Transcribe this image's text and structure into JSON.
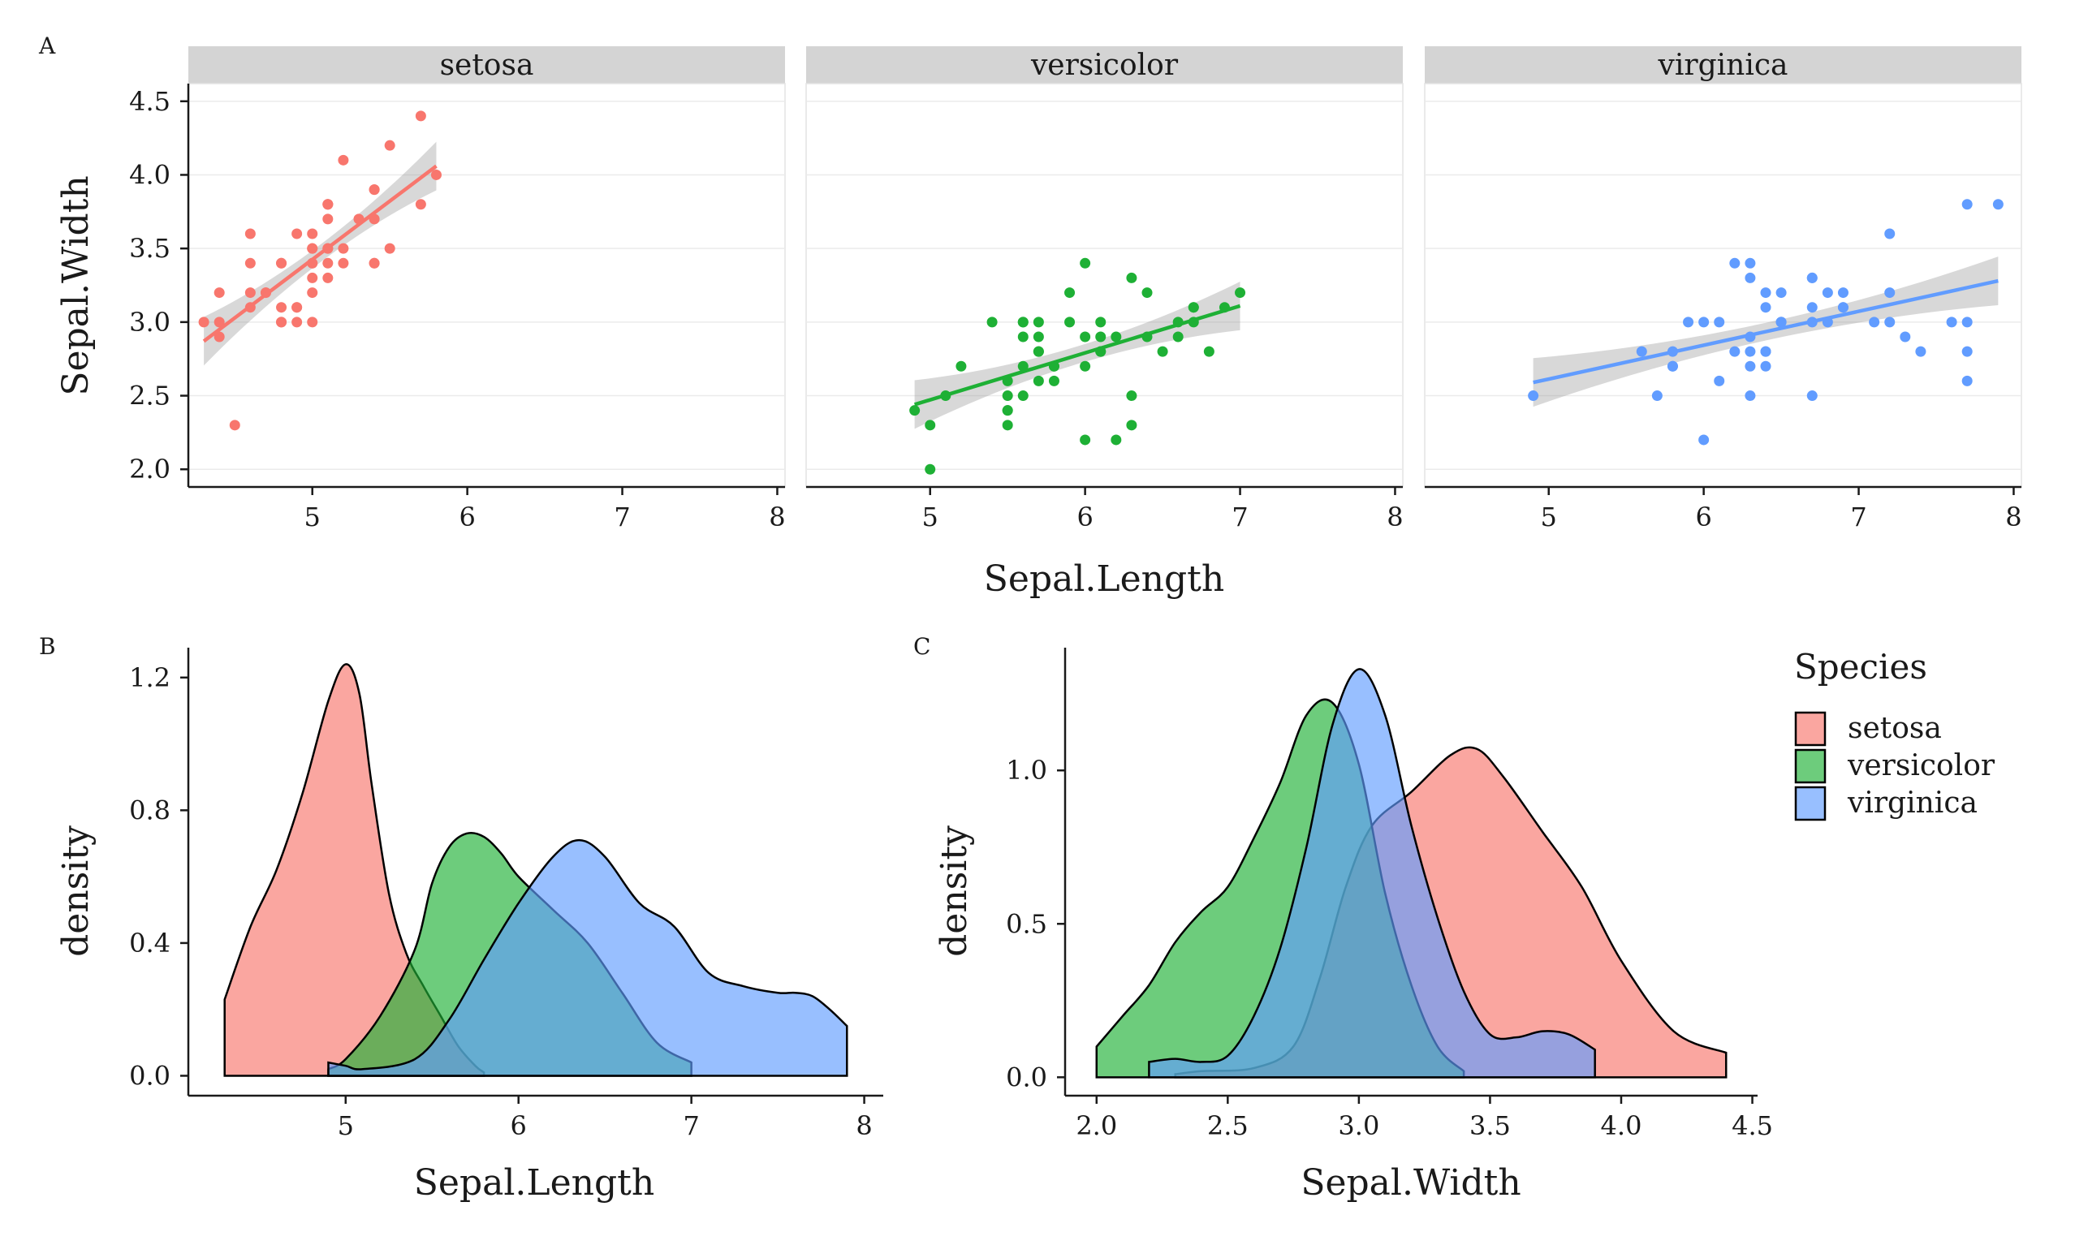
{
  "colors": {
    "setosa": "#F8766D",
    "versicolor": "#1EB035",
    "virginica": "#619CFF",
    "strip_bg": "#D4D4D4",
    "ribbon": "#999999"
  },
  "legend": {
    "title": "Species",
    "items": [
      "setosa",
      "versicolor",
      "virginica"
    ]
  },
  "chart_data": [
    {
      "tag": "A",
      "type": "scatter",
      "facets": [
        "setosa",
        "versicolor",
        "virginica"
      ],
      "xlabel": "Sepal.Length",
      "ylabel": "Sepal.Width",
      "xlim": [
        4.2,
        8.05
      ],
      "ylim": [
        1.88,
        4.62
      ],
      "xticks": [
        5,
        6,
        7,
        8
      ],
      "yticks": [
        "2.0",
        "2.5",
        "3.0",
        "3.5",
        "4.0",
        "4.5"
      ],
      "regression": "linear fit with confidence band per facet",
      "series": [
        {
          "name": "setosa",
          "x": [
            5.1,
            4.9,
            4.7,
            4.6,
            5.0,
            5.4,
            4.6,
            5.0,
            4.4,
            4.9,
            5.4,
            4.8,
            4.8,
            4.3,
            5.8,
            5.7,
            5.4,
            5.1,
            5.7,
            5.1,
            5.4,
            5.1,
            4.6,
            5.1,
            4.8,
            5.0,
            5.0,
            5.2,
            5.2,
            4.7,
            4.8,
            5.4,
            5.2,
            5.5,
            4.9,
            5.0,
            5.5,
            4.9,
            4.4,
            5.1,
            5.0,
            4.5,
            4.4,
            5.0,
            5.1,
            4.8,
            5.1,
            4.6,
            5.3,
            5.0
          ],
          "y": [
            3.5,
            3.0,
            3.2,
            3.1,
            3.6,
            3.9,
            3.4,
            3.4,
            2.9,
            3.1,
            3.7,
            3.4,
            3.0,
            3.0,
            4.0,
            4.4,
            3.9,
            3.5,
            3.8,
            3.8,
            3.4,
            3.7,
            3.6,
            3.3,
            3.4,
            3.0,
            3.4,
            3.5,
            3.4,
            3.2,
            3.1,
            3.4,
            4.1,
            4.2,
            3.1,
            3.2,
            3.5,
            3.6,
            3.0,
            3.4,
            3.5,
            2.3,
            3.2,
            3.5,
            3.8,
            3.0,
            3.8,
            3.2,
            3.7,
            3.3
          ],
          "fit": {
            "x": [
              4.3,
              5.8
            ],
            "y": [
              2.87,
              4.06
            ]
          }
        },
        {
          "name": "versicolor",
          "x": [
            7.0,
            6.4,
            6.9,
            5.5,
            6.5,
            5.7,
            6.3,
            4.9,
            6.6,
            5.2,
            5.0,
            5.9,
            6.0,
            6.1,
            5.6,
            6.7,
            5.6,
            5.8,
            6.2,
            5.6,
            5.9,
            6.1,
            6.3,
            6.1,
            6.4,
            6.6,
            6.8,
            6.7,
            6.0,
            5.7,
            5.5,
            5.5,
            5.8,
            6.0,
            5.4,
            6.0,
            6.7,
            6.3,
            5.6,
            5.5,
            5.5,
            6.1,
            5.8,
            5.0,
            5.6,
            5.7,
            5.7,
            6.2,
            5.1,
            5.7
          ],
          "y": [
            3.2,
            3.2,
            3.1,
            2.3,
            2.8,
            2.8,
            3.3,
            2.4,
            2.9,
            2.7,
            2.0,
            3.0,
            2.2,
            2.9,
            2.9,
            3.1,
            3.0,
            2.7,
            2.2,
            2.5,
            3.2,
            2.8,
            2.5,
            2.8,
            2.9,
            3.0,
            2.8,
            3.0,
            2.9,
            2.6,
            2.4,
            2.4,
            2.7,
            2.7,
            3.0,
            3.4,
            3.1,
            2.3,
            3.0,
            2.5,
            2.6,
            3.0,
            2.6,
            2.3,
            2.7,
            3.0,
            2.9,
            2.9,
            2.5,
            2.8
          ],
          "fit": {
            "x": [
              4.9,
              7.0
            ],
            "y": [
              2.44,
              3.11
            ]
          }
        },
        {
          "name": "virginica",
          "x": [
            6.3,
            5.8,
            7.1,
            6.3,
            6.5,
            7.6,
            4.9,
            7.3,
            6.7,
            7.2,
            6.5,
            6.4,
            6.8,
            5.7,
            5.8,
            6.4,
            6.5,
            7.7,
            7.7,
            6.0,
            6.9,
            5.6,
            7.7,
            6.3,
            6.7,
            7.2,
            6.2,
            6.1,
            6.4,
            7.2,
            7.4,
            7.9,
            6.4,
            6.3,
            6.1,
            7.7,
            6.3,
            6.4,
            6.0,
            6.9,
            6.7,
            6.9,
            5.8,
            6.8,
            6.7,
            6.7,
            6.3,
            6.5,
            6.2,
            5.9
          ],
          "y": [
            3.3,
            2.7,
            3.0,
            2.9,
            3.0,
            3.0,
            2.5,
            2.9,
            2.5,
            3.6,
            3.2,
            2.7,
            3.0,
            2.5,
            2.8,
            3.2,
            3.0,
            3.8,
            2.6,
            2.2,
            3.2,
            2.8,
            2.8,
            2.7,
            3.3,
            3.2,
            2.8,
            3.0,
            2.8,
            3.0,
            2.8,
            3.8,
            2.8,
            2.8,
            2.6,
            3.0,
            3.4,
            3.1,
            3.0,
            3.1,
            3.1,
            3.1,
            2.7,
            3.2,
            3.3,
            3.0,
            2.5,
            3.0,
            3.4,
            3.0
          ],
          "fit": {
            "x": [
              4.9,
              7.9
            ],
            "y": [
              2.59,
              3.28
            ]
          }
        }
      ]
    },
    {
      "tag": "B",
      "type": "area",
      "xlabel": "Sepal.Length",
      "ylabel": "density",
      "xlim": [
        4.09,
        8.11
      ],
      "ylim": [
        -0.06,
        1.29
      ],
      "xticks": [
        5,
        6,
        7,
        8
      ],
      "yticks": [
        "0.0",
        "0.4",
        "0.8",
        "1.2"
      ],
      "series": [
        {
          "name": "setosa",
          "x": [
            4.3,
            4.45,
            4.6,
            4.75,
            4.9,
            5.0,
            5.08,
            5.15,
            5.25,
            5.35,
            5.45,
            5.55,
            5.65,
            5.75,
            5.8
          ],
          "y": [
            0.23,
            0.45,
            0.62,
            0.85,
            1.13,
            1.24,
            1.15,
            0.88,
            0.55,
            0.37,
            0.27,
            0.18,
            0.09,
            0.03,
            0.01
          ]
        },
        {
          "name": "versicolor",
          "x": [
            4.9,
            5.0,
            5.2,
            5.4,
            5.5,
            5.6,
            5.7,
            5.8,
            5.9,
            6.0,
            6.2,
            6.4,
            6.6,
            6.8,
            7.0
          ],
          "y": [
            0.02,
            0.05,
            0.18,
            0.38,
            0.58,
            0.69,
            0.73,
            0.72,
            0.67,
            0.6,
            0.5,
            0.4,
            0.25,
            0.1,
            0.04
          ]
        },
        {
          "name": "virginica",
          "x": [
            4.9,
            5.0,
            5.1,
            5.4,
            5.6,
            5.8,
            6.0,
            6.2,
            6.35,
            6.5,
            6.7,
            6.9,
            7.1,
            7.3,
            7.5,
            7.6,
            7.7,
            7.8,
            7.9
          ],
          "y": [
            0.04,
            0.03,
            0.02,
            0.05,
            0.17,
            0.35,
            0.52,
            0.66,
            0.71,
            0.66,
            0.52,
            0.45,
            0.31,
            0.27,
            0.25,
            0.25,
            0.24,
            0.2,
            0.15
          ]
        }
      ]
    },
    {
      "tag": "C",
      "type": "area",
      "xlabel": "Sepal.Width",
      "ylabel": "density",
      "xlim": [
        1.88,
        4.52
      ],
      "ylim": [
        -0.06,
        1.4
      ],
      "xticks": [
        "2.0",
        "2.5",
        "3.0",
        "3.5",
        "4.0",
        "4.5"
      ],
      "yticks": [
        "0.0",
        "0.5",
        "1.0"
      ],
      "series": [
        {
          "name": "setosa",
          "x": [
            2.3,
            2.4,
            2.6,
            2.75,
            2.85,
            2.95,
            3.05,
            3.2,
            3.35,
            3.45,
            3.55,
            3.7,
            3.85,
            4.0,
            4.2,
            4.4
          ],
          "y": [
            0.01,
            0.02,
            0.03,
            0.1,
            0.32,
            0.62,
            0.82,
            0.93,
            1.05,
            1.07,
            0.98,
            0.8,
            0.62,
            0.38,
            0.15,
            0.08
          ]
        },
        {
          "name": "versicolor",
          "x": [
            2.0,
            2.1,
            2.2,
            2.3,
            2.4,
            2.5,
            2.6,
            2.7,
            2.8,
            2.9,
            3.0,
            3.1,
            3.2,
            3.3,
            3.4
          ],
          "y": [
            0.1,
            0.2,
            0.3,
            0.44,
            0.54,
            0.62,
            0.78,
            0.96,
            1.18,
            1.22,
            1.02,
            0.6,
            0.3,
            0.1,
            0.02
          ]
        },
        {
          "name": "virginica",
          "x": [
            2.2,
            2.3,
            2.4,
            2.5,
            2.6,
            2.7,
            2.8,
            2.9,
            3.0,
            3.1,
            3.2,
            3.3,
            3.4,
            3.5,
            3.6,
            3.7,
            3.8,
            3.9
          ],
          "y": [
            0.05,
            0.06,
            0.05,
            0.07,
            0.2,
            0.42,
            0.75,
            1.15,
            1.33,
            1.18,
            0.82,
            0.52,
            0.28,
            0.14,
            0.13,
            0.15,
            0.14,
            0.09
          ]
        }
      ]
    }
  ]
}
